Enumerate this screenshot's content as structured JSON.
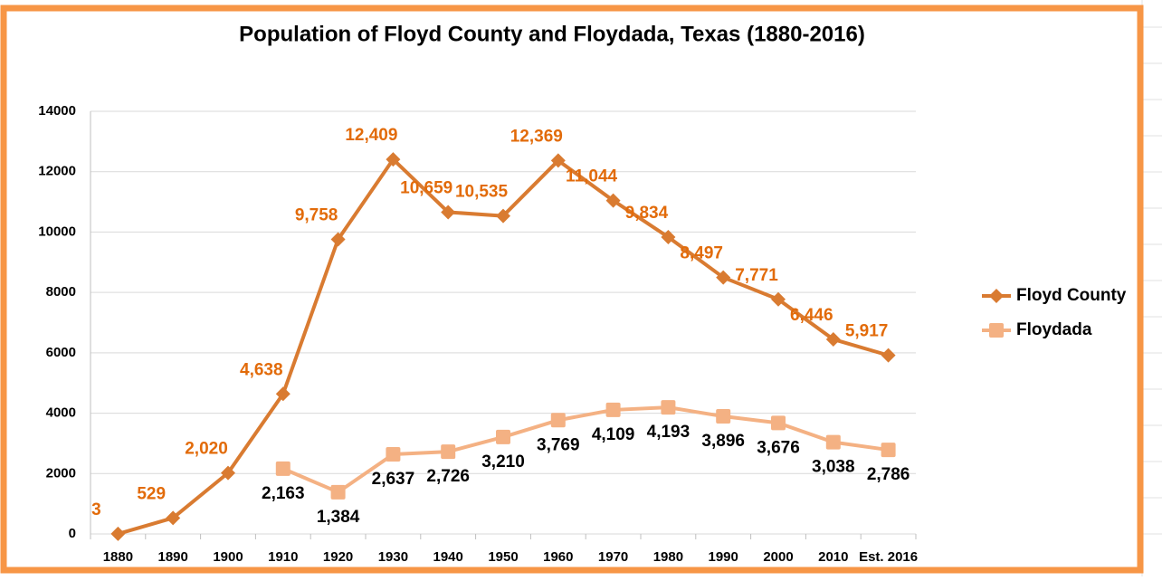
{
  "chart_data": {
    "type": "line",
    "title": "Population of Floyd County and Floydada, Texas (1880-2016)",
    "categories": [
      "1880",
      "1890",
      "1900",
      "1910",
      "1920",
      "1930",
      "1940",
      "1950",
      "1960",
      "1970",
      "1980",
      "1990",
      "2000",
      "2010",
      "Est. 2016"
    ],
    "series": [
      {
        "name": "Floyd County",
        "color": "#d97b31",
        "marker": "diamond",
        "values": [
          3,
          529,
          2020,
          4638,
          9758,
          12409,
          10659,
          10535,
          12369,
          11044,
          9834,
          8497,
          7771,
          6446,
          5917
        ],
        "value_labels": [
          "3",
          "529",
          "2,020",
          "4,638",
          "9,758",
          "12,409",
          "10,659",
          "10,535",
          "12,369",
          "11,044",
          "9,834",
          "8,497",
          "7,771",
          "6,446",
          "5,917"
        ]
      },
      {
        "name": "Floydada",
        "color": "#f4b183",
        "marker": "square",
        "values": [
          null,
          null,
          null,
          2163,
          1384,
          2637,
          2726,
          3210,
          3769,
          4109,
          4193,
          3896,
          3676,
          3038,
          2786
        ],
        "value_labels": [
          null,
          null,
          null,
          "2,163",
          "1,384",
          "2,637",
          "2,726",
          "3,210",
          "3,769",
          "4,109",
          "4,193",
          "3,896",
          "3,676",
          "3,038",
          "2,786"
        ]
      }
    ],
    "ylim": [
      0,
      14000
    ],
    "yticks": [
      0,
      2000,
      4000,
      6000,
      8000,
      10000,
      12000,
      14000
    ],
    "grid": true,
    "legend": "right"
  }
}
